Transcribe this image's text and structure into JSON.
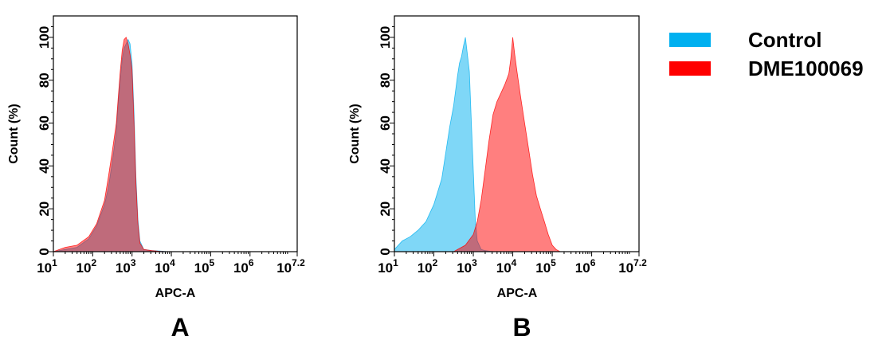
{
  "colors": {
    "control": "#00b0f0",
    "sample": "#ff0000"
  },
  "legend": [
    {
      "name": "Control",
      "color": "#00b0f0"
    },
    {
      "name": "DME100069",
      "color": "#ff0000"
    }
  ],
  "chart_data": [
    {
      "type": "area",
      "panel_label": "A",
      "xlabel": "APC-A",
      "ylabel": "Count  (%)",
      "xscale": "log",
      "xlim": [
        1,
        7.2
      ],
      "ylim": [
        0,
        110
      ],
      "x_ticks": [
        {
          "base": "10",
          "exp": "1"
        },
        {
          "base": "10",
          "exp": "2"
        },
        {
          "base": "10",
          "exp": "3"
        },
        {
          "base": "10",
          "exp": "4"
        },
        {
          "base": "10",
          "exp": "5"
        },
        {
          "base": "10",
          "exp": "6"
        },
        {
          "base": "10",
          "exp": "7.2"
        }
      ],
      "y_ticks": [
        "0",
        "20",
        "40",
        "60",
        "80",
        "100"
      ],
      "series": [
        {
          "name": "Control",
          "color": "#00b0f0",
          "log10_x": [
            1.0,
            1.3,
            1.6,
            1.9,
            2.1,
            2.3,
            2.4,
            2.5,
            2.6,
            2.65,
            2.7,
            2.75,
            2.8,
            2.85,
            2.9,
            2.95,
            3.0,
            3.05,
            3.1,
            3.15,
            3.2,
            3.3,
            3.5,
            3.7,
            3.9
          ],
          "y": [
            0,
            1,
            2,
            6,
            12,
            22,
            30,
            42,
            56,
            70,
            80,
            90,
            95,
            97,
            99,
            97,
            88,
            65,
            35,
            15,
            5,
            1,
            0.5,
            0.3,
            0
          ]
        },
        {
          "name": "DME100069",
          "color": "#ff0000",
          "log10_x": [
            1.0,
            1.3,
            1.6,
            1.9,
            2.1,
            2.3,
            2.4,
            2.5,
            2.6,
            2.65,
            2.7,
            2.75,
            2.8,
            2.85,
            2.9,
            2.95,
            3.0,
            3.05,
            3.1,
            3.15,
            3.2,
            3.3,
            3.5,
            3.7,
            3.9
          ],
          "y": [
            0,
            2,
            3,
            7,
            13,
            24,
            35,
            47,
            60,
            72,
            84,
            94,
            99,
            100,
            97,
            92,
            85,
            60,
            32,
            13,
            4,
            1,
            0.5,
            0.2,
            0
          ]
        }
      ]
    },
    {
      "type": "area",
      "panel_label": "B",
      "xlabel": "APC-A",
      "ylabel": "Count  (%)",
      "xscale": "log",
      "xlim": [
        1,
        7.2
      ],
      "ylim": [
        0,
        110
      ],
      "x_ticks": [
        {
          "base": "10",
          "exp": "1"
        },
        {
          "base": "10",
          "exp": "2"
        },
        {
          "base": "10",
          "exp": "3"
        },
        {
          "base": "10",
          "exp": "4"
        },
        {
          "base": "10",
          "exp": "5"
        },
        {
          "base": "10",
          "exp": "6"
        },
        {
          "base": "10",
          "exp": "7.2"
        }
      ],
      "y_ticks": [
        "0",
        "20",
        "40",
        "60",
        "80",
        "100"
      ],
      "series": [
        {
          "name": "Control",
          "color": "#00b0f0",
          "log10_x": [
            1.0,
            1.2,
            1.4,
            1.6,
            1.8,
            2.0,
            2.2,
            2.3,
            2.4,
            2.5,
            2.6,
            2.65,
            2.7,
            2.75,
            2.8,
            2.85,
            2.9,
            2.95,
            3.0,
            3.05,
            3.1,
            3.2,
            3.3,
            3.5
          ],
          "y": [
            1,
            5,
            7,
            10,
            14,
            22,
            34,
            46,
            58,
            68,
            82,
            88,
            91,
            96,
            100,
            92,
            84,
            60,
            38,
            15,
            5,
            1,
            0.5,
            0
          ]
        },
        {
          "name": "DME100069",
          "color": "#ff0000",
          "log10_x": [
            2.5,
            2.8,
            3.0,
            3.1,
            3.2,
            3.3,
            3.4,
            3.5,
            3.6,
            3.7,
            3.8,
            3.9,
            3.95,
            4.0,
            4.05,
            4.1,
            4.2,
            4.3,
            4.4,
            4.5,
            4.6,
            4.7,
            4.8,
            4.9,
            5.0,
            5.1,
            5.2
          ],
          "y": [
            0,
            3,
            8,
            14,
            24,
            38,
            52,
            64,
            70,
            74,
            78,
            83,
            90,
            100,
            92,
            85,
            72,
            60,
            48,
            36,
            26,
            20,
            14,
            8,
            3,
            1,
            0
          ]
        }
      ]
    }
  ]
}
